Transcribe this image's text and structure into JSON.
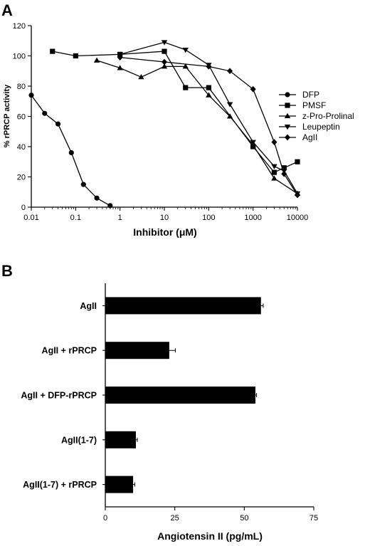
{
  "chart_data": [
    {
      "panel_label": "A",
      "type": "line",
      "xlabel": "Inhibitor (μM)",
      "ylabel": "% rPRCP activity",
      "xscale": "log",
      "xlim": [
        0.01,
        10000
      ],
      "ylim": [
        0,
        120
      ],
      "xticks": [
        "0.01",
        "0.1",
        "1",
        "10",
        "100",
        "1000",
        "10000"
      ],
      "yticks": [
        "0",
        "20",
        "40",
        "60",
        "80",
        "100",
        "120"
      ],
      "grid": false,
      "legend_position": "right",
      "series": [
        {
          "name": "DFP",
          "marker": "circle",
          "x": [
            0.01,
            0.02,
            0.04,
            0.08,
            0.15,
            0.3,
            0.6
          ],
          "y": [
            74,
            62,
            55,
            36,
            15,
            6,
            1
          ]
        },
        {
          "name": "PMSF",
          "marker": "square",
          "x": [
            0.03,
            0.1,
            1,
            10,
            30,
            100,
            1000,
            3000,
            5000,
            10000
          ],
          "y": [
            103,
            100,
            101,
            103,
            79,
            79,
            40,
            23,
            26,
            30
          ]
        },
        {
          "name": "z-Pro-Prolinal",
          "marker": "triangle-up",
          "x": [
            0.3,
            1,
            3,
            10,
            30,
            100,
            300,
            1000,
            3000,
            10000
          ],
          "y": [
            97,
            92,
            86,
            93,
            93,
            74,
            60,
            41,
            19,
            9
          ]
        },
        {
          "name": "Leupeptin",
          "marker": "triangle-down",
          "x": [
            1,
            10,
            30,
            100,
            300,
            1000,
            3000,
            5000,
            10000
          ],
          "y": [
            101,
            109,
            104,
            94,
            68,
            43,
            27,
            24,
            9
          ]
        },
        {
          "name": "AgII",
          "marker": "diamond",
          "x": [
            1,
            10,
            100,
            300,
            1000,
            3000,
            5000,
            10000
          ],
          "y": [
            99,
            96,
            93,
            90,
            78,
            43,
            22,
            8
          ]
        }
      ]
    },
    {
      "panel_label": "B",
      "type": "bar",
      "orientation": "horizontal",
      "xlabel": "Angiotensin II (pg/mL)",
      "xlim": [
        0,
        75
      ],
      "xticks": [
        "0",
        "25",
        "50",
        "75"
      ],
      "grid": false,
      "categories": [
        "AgII",
        "AgII + rPRCP",
        "AgII + DFP-rPRCP",
        "AgII(1-7)",
        "AgII(1-7) + rPRCP"
      ],
      "values": [
        56,
        23,
        54,
        11,
        10
      ],
      "errors": [
        0.8,
        2.2,
        0.4,
        0.5,
        0.6
      ]
    }
  ]
}
